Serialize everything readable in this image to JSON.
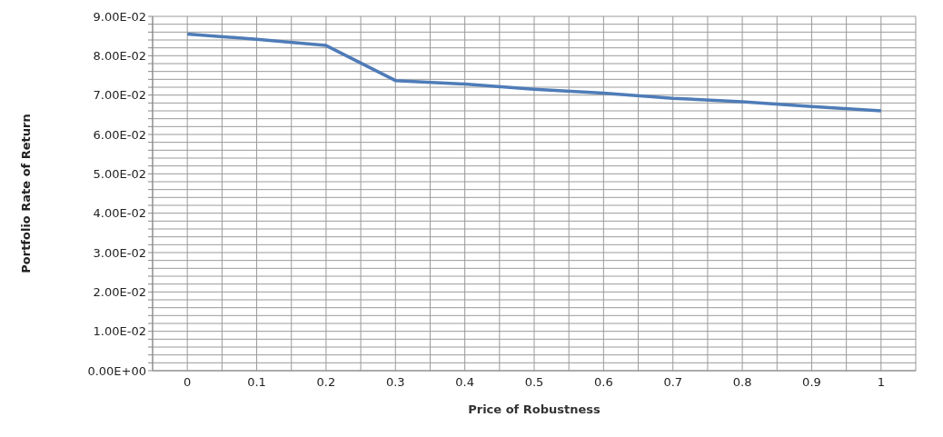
{
  "chart_data": {
    "type": "line",
    "xlabel": "Price of Robustness",
    "ylabel": "Portfolio Rate of Return",
    "categories": [
      "0",
      "0.1",
      "0.2",
      "0.3",
      "0.4",
      "0.5",
      "0.6",
      "0.7",
      "0.8",
      "0.9",
      "1"
    ],
    "series": [
      {
        "color": "#4f7cb8",
        "values": [
          0.0855,
          0.0842,
          0.0826,
          0.0737,
          0.0728,
          0.0715,
          0.0705,
          0.0692,
          0.0683,
          0.0671,
          0.066
        ]
      }
    ],
    "ylim": [
      0,
      0.09
    ],
    "yticks": [
      {
        "value": 0,
        "label": "0.00E+00"
      },
      {
        "value": 0.002,
        "label": null
      },
      {
        "value": 0.004,
        "label": null
      },
      {
        "value": 0.006,
        "label": null
      },
      {
        "value": 0.008,
        "label": null
      },
      {
        "value": 0.01,
        "label": "1.00E-02"
      },
      {
        "value": 0.012,
        "label": null
      },
      {
        "value": 0.014,
        "label": null
      },
      {
        "value": 0.016,
        "label": null
      },
      {
        "value": 0.018,
        "label": null
      },
      {
        "value": 0.02,
        "label": "2.00E-02"
      },
      {
        "value": 0.022,
        "label": null
      },
      {
        "value": 0.024,
        "label": null
      },
      {
        "value": 0.026,
        "label": null
      },
      {
        "value": 0.028,
        "label": null
      },
      {
        "value": 0.03,
        "label": "3.00E-02"
      },
      {
        "value": 0.032,
        "label": null
      },
      {
        "value": 0.034,
        "label": null
      },
      {
        "value": 0.036,
        "label": null
      },
      {
        "value": 0.038,
        "label": null
      },
      {
        "value": 0.04,
        "label": "4.00E-02"
      },
      {
        "value": 0.042,
        "label": null
      },
      {
        "value": 0.044,
        "label": null
      },
      {
        "value": 0.046,
        "label": null
      },
      {
        "value": 0.048,
        "label": null
      },
      {
        "value": 0.05,
        "label": "5.00E-02"
      },
      {
        "value": 0.052,
        "label": null
      },
      {
        "value": 0.054,
        "label": null
      },
      {
        "value": 0.056,
        "label": null
      },
      {
        "value": 0.058,
        "label": null
      },
      {
        "value": 0.06,
        "label": "6.00E-02"
      },
      {
        "value": 0.062,
        "label": null
      },
      {
        "value": 0.064,
        "label": null
      },
      {
        "value": 0.066,
        "label": null
      },
      {
        "value": 0.068,
        "label": null
      },
      {
        "value": 0.07,
        "label": "7.00E-02"
      },
      {
        "value": 0.072,
        "label": null
      },
      {
        "value": 0.074,
        "label": null
      },
      {
        "value": 0.076,
        "label": null
      },
      {
        "value": 0.078,
        "label": null
      },
      {
        "value": 0.08,
        "label": "8.00E-02"
      },
      {
        "value": 0.082,
        "label": null
      },
      {
        "value": 0.084,
        "label": null
      },
      {
        "value": 0.086,
        "label": null
      },
      {
        "value": 0.088,
        "label": null
      },
      {
        "value": 0.09,
        "label": "9.00E-02"
      }
    ],
    "grid": true,
    "legend": false,
    "marker": "none",
    "line_style": "solid"
  }
}
